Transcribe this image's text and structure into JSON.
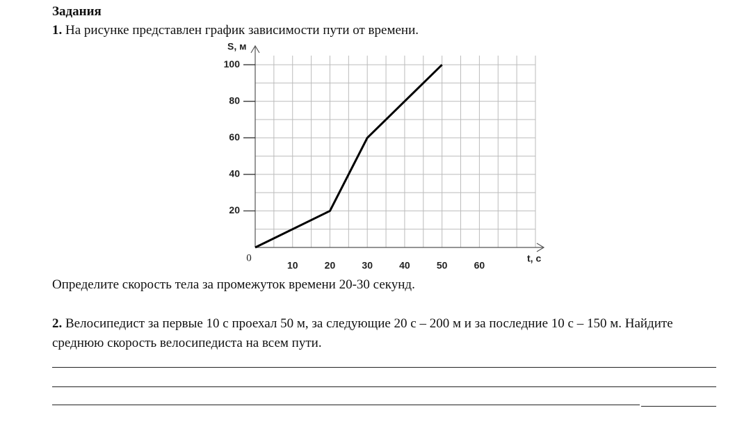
{
  "heading": "Задания",
  "task1": {
    "number": "1.",
    "text": "На рисунке представлен график зависимости пути от времени.",
    "question": "Определите скорость тела за промежуток времени 20-30 секунд."
  },
  "chart_data": {
    "type": "line",
    "xlabel": "t, с",
    "ylabel": "S, м",
    "x": [
      0,
      20,
      30,
      50
    ],
    "series": [
      {
        "values": [
          0,
          20,
          60,
          100
        ],
        "color": "#000000"
      }
    ],
    "xlim": [
      0,
      75
    ],
    "ylim": [
      0,
      105
    ],
    "xticks": [
      0,
      10,
      20,
      30,
      40,
      50,
      60
    ],
    "yticks": [
      20,
      40,
      60,
      80,
      100
    ],
    "grid": true
  },
  "task2": {
    "number": "2.",
    "text": "Велосипедист за первые 10 с проехал 50 м, за следующие 20 с – 200 м и за последние 10 с – 150 м. Найдите среднюю скорость велосипедиста на всем пути."
  }
}
